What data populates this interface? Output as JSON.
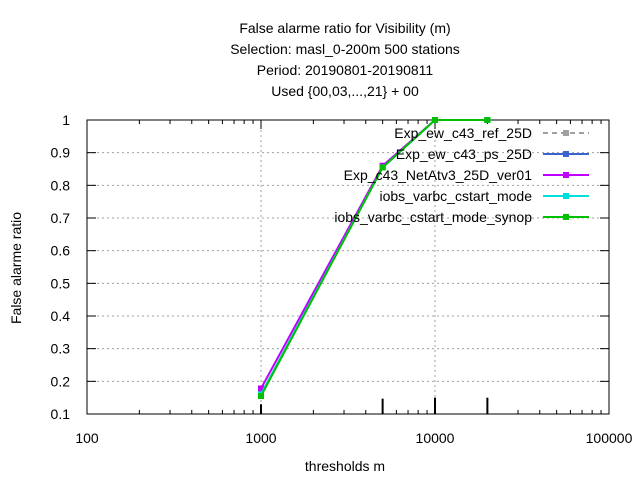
{
  "chart_data": {
    "type": "line",
    "title_lines": [
      "False alarme ratio  for Visibility (m)",
      "Selection: masl_0-200m    500 stations",
      "Period: 20190801-20190811",
      "Used {00,03,...,21} + 00"
    ],
    "xlabel": "thresholds m",
    "ylabel": "False alarme ratio",
    "x_scale": "log",
    "xlim": [
      100,
      100000
    ],
    "ylim": [
      0.1,
      1.0
    ],
    "x_ticks": [
      100,
      1000,
      10000,
      100000
    ],
    "x_tick_labels": [
      "100",
      "1000",
      "10000",
      "100000"
    ],
    "y_ticks": [
      0.1,
      0.2,
      0.3,
      0.4,
      0.5,
      0.6,
      0.7,
      0.8,
      0.9,
      1.0
    ],
    "y_tick_labels": [
      "0.1",
      "0.2",
      "0.3",
      "0.4",
      "0.5",
      "0.6",
      "0.7",
      "0.8",
      "0.9",
      "1"
    ],
    "grid": true,
    "legend_position": "top-right",
    "sample_bars": [
      {
        "x": 1000,
        "value": 0.13
      },
      {
        "x": 5000,
        "value": 0.147
      },
      {
        "x": 10000,
        "value": 0.15
      },
      {
        "x": 20000,
        "value": 0.15
      }
    ],
    "series": [
      {
        "name": "Exp_ew_c43_ref_25D",
        "color": "#a0a0a0",
        "dash": true,
        "x": [
          1000,
          5000,
          10000,
          20000
        ],
        "values": [
          0.16,
          0.855,
          1.0,
          1.0
        ]
      },
      {
        "name": "Exp_ew_c43_ps_25D",
        "color": "#3a62d0",
        "dash": false,
        "x": [
          1000,
          5000,
          10000,
          20000
        ],
        "values": [
          0.16,
          0.855,
          1.0,
          1.0
        ]
      },
      {
        "name": "Exp_c43_NetAtv3_25D_ver01",
        "color": "#c000ff",
        "dash": false,
        "x": [
          1000,
          5000,
          10000,
          20000
        ],
        "values": [
          0.178,
          0.86,
          1.0,
          1.0
        ]
      },
      {
        "name": "iobs_varbc_cstart_mode",
        "color": "#00dede",
        "dash": false,
        "x": [
          1000,
          5000,
          10000,
          20000
        ],
        "values": [
          0.16,
          0.855,
          1.0,
          1.0
        ]
      },
      {
        "name": "iobs_varbc_cstart_mode_synop",
        "color": "#00c000",
        "dash": false,
        "x": [
          1000,
          5000,
          10000,
          20000
        ],
        "values": [
          0.155,
          0.855,
          1.0,
          1.0
        ]
      }
    ]
  }
}
